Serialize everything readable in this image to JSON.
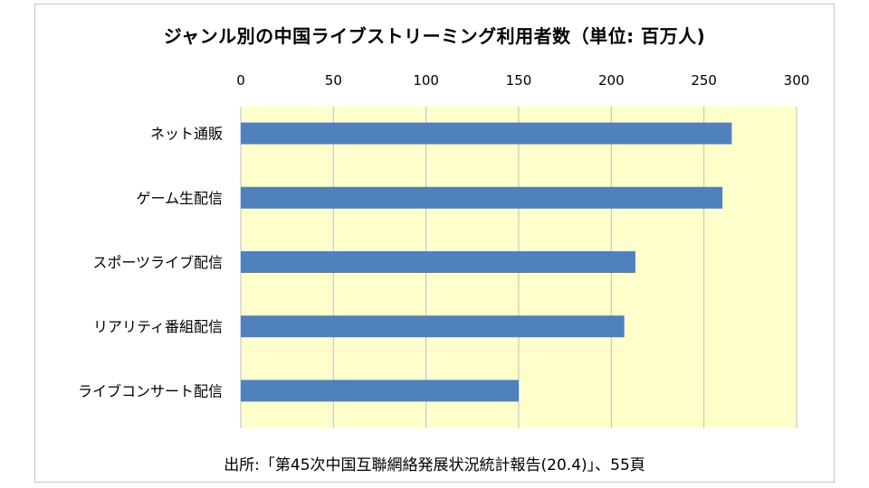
{
  "chart_data": {
    "type": "bar",
    "orientation": "horizontal",
    "title": "ジャンル別の中国ライブストリーミング利用者数（単位: 百万人)",
    "categories": [
      "ネット通販",
      "ゲーム生配信",
      "スポーツライブ配信",
      "リアリティ番組配信",
      "ライブコンサート配信"
    ],
    "values": [
      265,
      260,
      213,
      207,
      150
    ],
    "xlim": [
      0,
      300
    ],
    "x_ticks": [
      "0",
      "50",
      "100",
      "150",
      "200",
      "250",
      "300"
    ],
    "x_axis_position": "top",
    "grid": true,
    "legend": "none",
    "bar_color": "#4f81bd",
    "plot_background": "#ffffcc",
    "source": "出所:「第45次中国互聯網絡発展状況統計報告(20.4)」、55頁"
  }
}
